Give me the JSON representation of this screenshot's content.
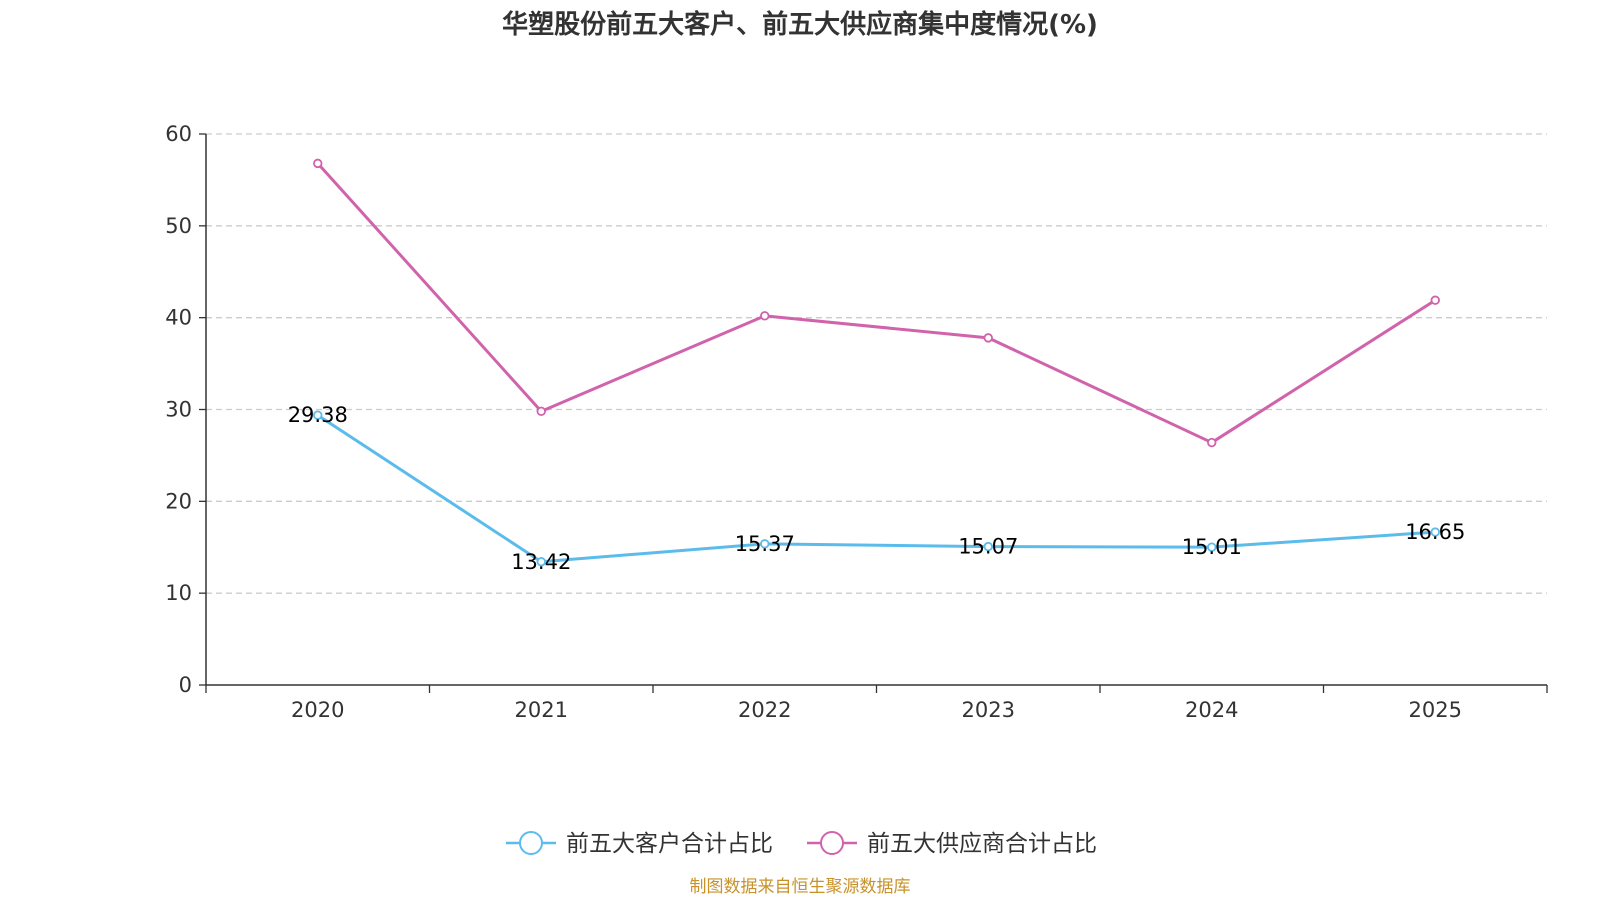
{
  "chart_data": {
    "type": "line",
    "title": "华塑股份前五大客户、前五大供应商集中度情况(%)",
    "categories": [
      "2020",
      "2021",
      "2022",
      "2023",
      "2024",
      "2025"
    ],
    "series": [
      {
        "name": "前五大客户合计占比",
        "color": "#5bbcec",
        "values": [
          29.38,
          13.42,
          15.37,
          15.07,
          15.01,
          16.65
        ],
        "labels": [
          "29.38",
          "13.42",
          "15.37",
          "15.07",
          "15.01",
          "16.65"
        ],
        "show_labels": true
      },
      {
        "name": "前五大供应商合计占比",
        "color": "#d063ab",
        "values": [
          56.8,
          29.8,
          40.2,
          37.8,
          26.4,
          41.9
        ],
        "show_labels": false
      }
    ],
    "yticks": [
      0,
      10,
      20,
      30,
      40,
      50,
      60
    ],
    "ylim": [
      0,
      60
    ],
    "grid": true,
    "legend_position": "bottom-center",
    "xlabel": "",
    "ylabel": ""
  },
  "source": {
    "text": "制图数据来自恒生聚源数据库",
    "color": "#c8922a"
  }
}
